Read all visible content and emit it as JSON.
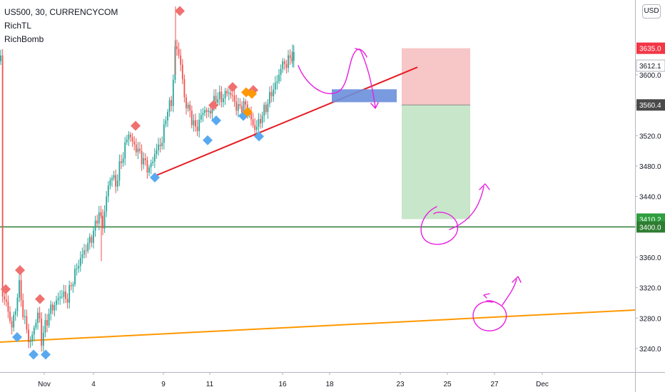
{
  "legend": {
    "symbol": "US500, 30, CURRENCYCOM",
    "indicator_1": "RichTL",
    "indicator_2": "RichBomb"
  },
  "currency_button": "USD",
  "colors": {
    "up_candle": "#26a69a",
    "down_candle": "#ef5350",
    "red_trendline": "#e51c23",
    "orange_trendline": "#ff9800",
    "green_hline": "#2e7d32",
    "drawing": "#e91ee0",
    "rect_blue": "#6a8fdb",
    "stop_zone": "#f7c6c7",
    "target_zone": "#c8e6c9"
  },
  "chart_data": {
    "type": "candlestick",
    "symbol": "US500",
    "timeframe": "30",
    "exchange": "CURRENCYCOM",
    "ylim": [
      3205,
      3705
    ],
    "y_ticks": [
      "3600.0",
      "3560.0",
      "3520.0",
      "3480.0",
      "3440.0",
      "3400.0",
      "3360.0",
      "3320.0",
      "3280.0",
      "3240.0"
    ],
    "x_ticks": [
      "Nov",
      "4",
      "9",
      "11",
      "16",
      "18",
      "23",
      "25",
      "27",
      "Dec"
    ],
    "price_labels": [
      {
        "text": "3635.0",
        "value": 3635.0,
        "color": "#ef5350"
      },
      {
        "text": "3612.1",
        "value": 3612.1,
        "color": "#ffffff"
      },
      {
        "text": "3560.4",
        "value": 3560.4,
        "color": "#4a4a4a"
      },
      {
        "text": "3410.2",
        "value": 3410.2,
        "color": "#2e9e3e"
      },
      {
        "text": "3400.0",
        "value": 3400.0,
        "color": "#2e7d32"
      }
    ],
    "key_levels": {
      "horizontal_support": 3400.0,
      "entry": 3560.4,
      "stop": 3635.0,
      "target": 3410.2
    },
    "signals": {
      "red": [
        [
          2,
          3318
        ],
        [
          22,
          3343
        ],
        [
          50,
          3305
        ],
        [
          184,
          3533
        ],
        [
          246,
          3684
        ],
        [
          293,
          3560
        ],
        [
          320,
          3584
        ],
        [
          349,
          3580
        ]
      ],
      "blue": [
        [
          18,
          3255
        ],
        [
          41,
          3232
        ],
        [
          58,
          3232
        ],
        [
          211,
          3465
        ],
        [
          285,
          3514
        ],
        [
          297,
          3540
        ],
        [
          335,
          3546
        ],
        [
          357,
          3519
        ]
      ],
      "orange": [
        [
          343,
          3577
        ],
        [
          351,
          3575
        ],
        [
          345,
          3551
        ]
      ]
    }
  }
}
